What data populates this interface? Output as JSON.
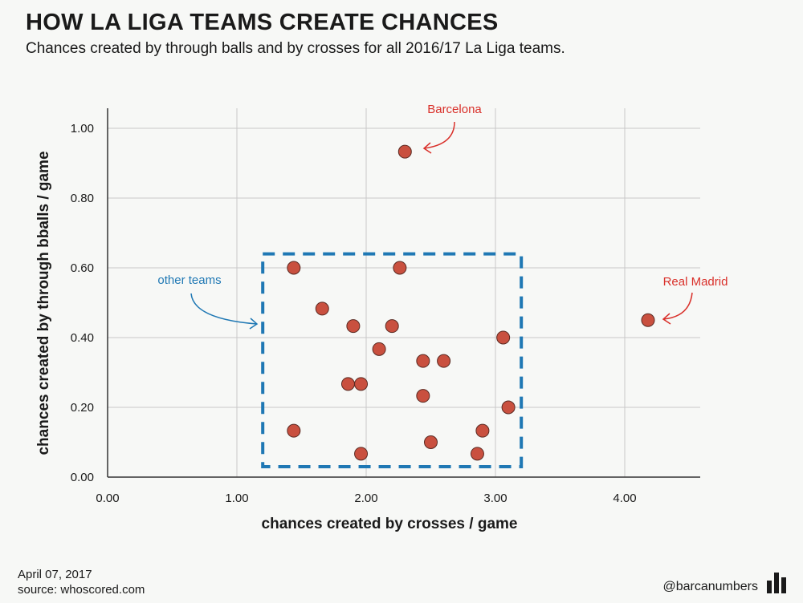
{
  "header": {
    "title": "HOW LA LIGA TEAMS CREATE CHANCES",
    "subtitle": "Chances created by through balls and by crosses for all 2016/17 La Liga teams."
  },
  "footer": {
    "date": "April 07, 2017",
    "source": "source: whoscored.com",
    "handle": "@barcanumbers"
  },
  "colors": {
    "point_fill": "#c9503f",
    "point_stroke": "#5a2a22",
    "grid": "#c8c8c8",
    "axis": "#333333",
    "highlight_text": "#d9302a",
    "other_text": "#1f78b4",
    "box": "#1f78b4"
  },
  "chart_data": {
    "type": "scatter",
    "title": "HOW LA LIGA TEAMS CREATE CHANCES",
    "xlabel": "chances created by crosses / game",
    "ylabel": "chances created by through bballs / game",
    "xlim": [
      0,
      4.6
    ],
    "ylim": [
      0,
      1.05
    ],
    "xticks": [
      0,
      1,
      2,
      3,
      4
    ],
    "xtick_labels": [
      "0.00",
      "1.00",
      "2.00",
      "3.00",
      "4.00"
    ],
    "yticks": [
      0,
      0.2,
      0.4,
      0.6,
      0.8,
      1.0
    ],
    "ytick_labels": [
      "0.00",
      "0.20",
      "0.40",
      "0.60",
      "0.80",
      "1.00"
    ],
    "grid": true,
    "points": [
      {
        "x": 2.3,
        "y": 0.933,
        "label": "Barcelona"
      },
      {
        "x": 4.18,
        "y": 0.45,
        "label": "Real Madrid"
      },
      {
        "x": 1.44,
        "y": 0.6
      },
      {
        "x": 2.26,
        "y": 0.6
      },
      {
        "x": 1.66,
        "y": 0.483
      },
      {
        "x": 1.9,
        "y": 0.433
      },
      {
        "x": 2.2,
        "y": 0.433
      },
      {
        "x": 3.06,
        "y": 0.4
      },
      {
        "x": 2.1,
        "y": 0.367
      },
      {
        "x": 2.44,
        "y": 0.333
      },
      {
        "x": 2.6,
        "y": 0.333
      },
      {
        "x": 1.86,
        "y": 0.267
      },
      {
        "x": 1.96,
        "y": 0.267
      },
      {
        "x": 2.44,
        "y": 0.233
      },
      {
        "x": 3.1,
        "y": 0.2
      },
      {
        "x": 1.44,
        "y": 0.133
      },
      {
        "x": 2.9,
        "y": 0.133
      },
      {
        "x": 2.5,
        "y": 0.1
      },
      {
        "x": 1.96,
        "y": 0.067
      },
      {
        "x": 2.86,
        "y": 0.067
      }
    ],
    "annotations": {
      "barcelona": "Barcelona",
      "real_madrid": "Real Madrid",
      "other_teams": "other teams"
    },
    "other_teams_box": {
      "x_range": [
        1.2,
        3.2
      ],
      "y_range": [
        0.03,
        0.64
      ]
    }
  }
}
